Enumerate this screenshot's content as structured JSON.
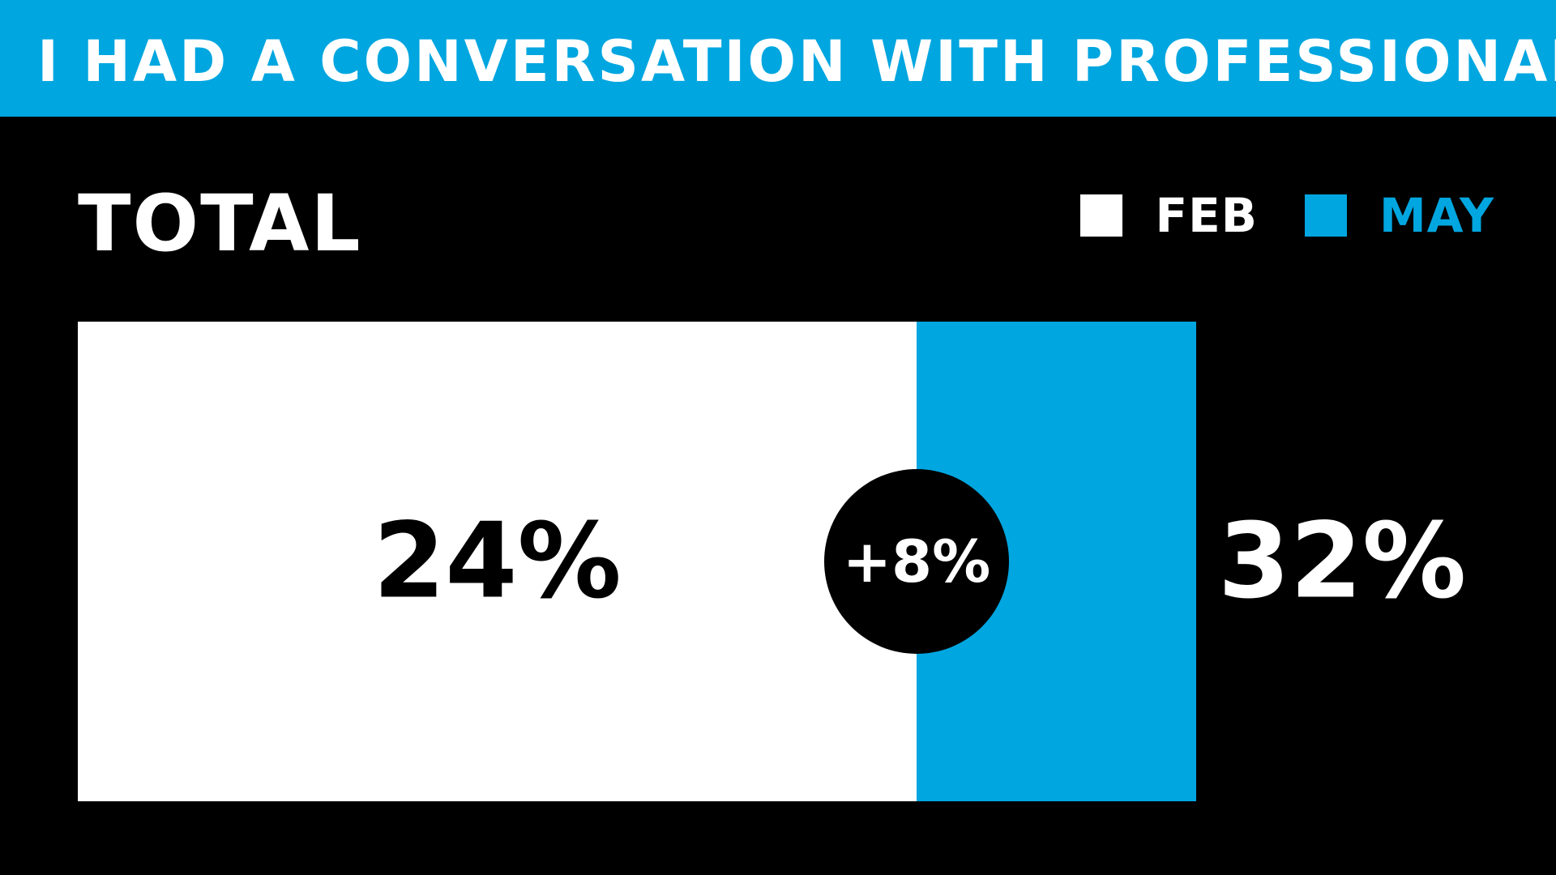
{
  "header": {
    "title": "I HAD A CONVERSATION WITH PROFESSIONALS"
  },
  "colors": {
    "background": "#000000",
    "accent": "#00A6E0",
    "feb": "#FFFFFF",
    "may": "#00A6E0",
    "text_light": "#FFFFFF",
    "text_dark": "#000000"
  },
  "chart_data": {
    "type": "bar",
    "orientation": "horizontal",
    "stacked_overlay": true,
    "title": "I HAD A CONVERSATION WITH PROFESSIONALS",
    "subtitle": "TOTAL",
    "categories": [
      "TOTAL"
    ],
    "series": [
      {
        "name": "FEB",
        "values": [
          24
        ],
        "label": "24%"
      },
      {
        "name": "MAY",
        "values": [
          32
        ],
        "label": "32%"
      }
    ],
    "difference": {
      "value": 8,
      "label": "+8%"
    },
    "legend": {
      "placement": "top-right",
      "entries": [
        "FEB",
        "MAY"
      ]
    },
    "grid": false
  }
}
